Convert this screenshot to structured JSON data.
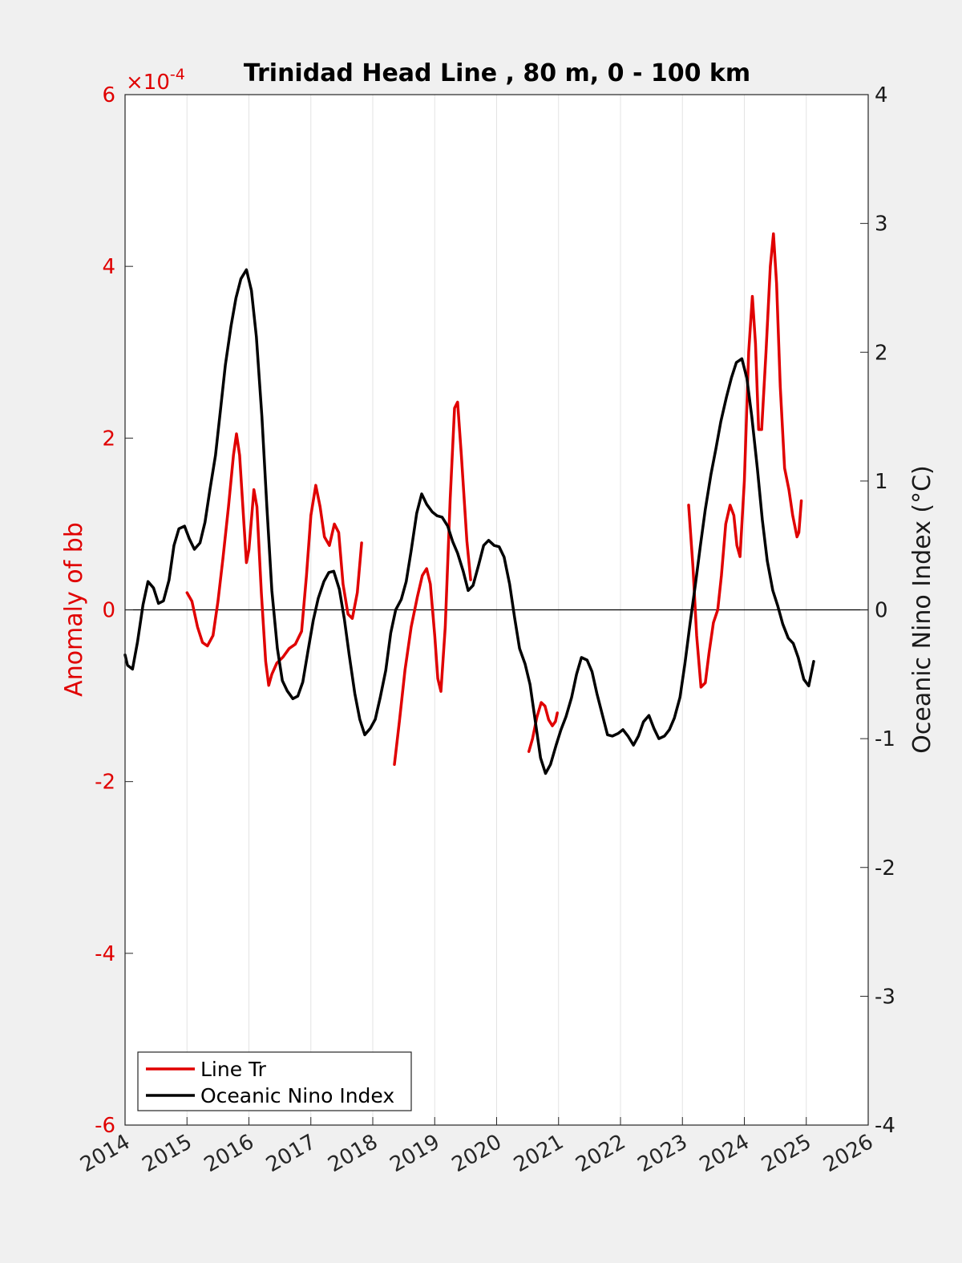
{
  "chart_data": {
    "type": "line",
    "title": "Trinidad Head Line , 80 m, 0 - 100 km",
    "xlabel": "",
    "ylabel": "Anomaly of bb",
    "ylabel_right": "Oceanic Nino Index (°C)",
    "y_exponent_label": "×10",
    "y_exponent_power": "-4",
    "xlim": [
      2014,
      2026
    ],
    "ylim": [
      -6,
      6
    ],
    "ylim_right": [
      -4,
      4
    ],
    "x_ticks": [
      2014,
      2015,
      2016,
      2017,
      2018,
      2019,
      2020,
      2021,
      2022,
      2023,
      2024,
      2025,
      2026
    ],
    "x_tick_labels": [
      "2014",
      "2015",
      "2016",
      "2017",
      "2018",
      "2019",
      "2020",
      "2021",
      "2022",
      "2023",
      "2024",
      "2025",
      "2026"
    ],
    "y_ticks": [
      -6,
      -4,
      -2,
      0,
      2,
      4,
      6
    ],
    "y_tick_labels": [
      "-6",
      "-4",
      "-2",
      "0",
      "2",
      "4",
      "6"
    ],
    "y_ticks_right": [
      -4,
      -3,
      -2,
      -1,
      0,
      1,
      2,
      3,
      4
    ],
    "y_tick_labels_right": [
      "-4",
      "-3",
      "-2",
      "-1",
      "0",
      "1",
      "2",
      "3",
      "4"
    ],
    "grid": "vertical",
    "legend_position": "bottom-left",
    "series": [
      {
        "name": "Line Tr",
        "axis": "left",
        "color": "#e00000",
        "segments": [
          [
            [
              2015.0,
              0.2
            ],
            [
              2015.08,
              0.1
            ],
            [
              2015.17,
              -0.2
            ],
            [
              2015.25,
              -0.38
            ],
            [
              2015.33,
              -0.42
            ],
            [
              2015.42,
              -0.3
            ],
            [
              2015.5,
              0.1
            ],
            [
              2015.58,
              0.6
            ],
            [
              2015.67,
              1.2
            ],
            [
              2015.75,
              1.8
            ],
            [
              2015.8,
              2.05
            ],
            [
              2015.85,
              1.8
            ],
            [
              2015.92,
              1.0
            ],
            [
              2015.96,
              0.55
            ],
            [
              2016.0,
              0.7
            ],
            [
              2016.08,
              1.4
            ],
            [
              2016.13,
              1.2
            ],
            [
              2016.2,
              0.2
            ],
            [
              2016.27,
              -0.6
            ],
            [
              2016.32,
              -0.88
            ],
            [
              2016.37,
              -0.75
            ],
            [
              2016.45,
              -0.62
            ],
            [
              2016.55,
              -0.55
            ],
            [
              2016.65,
              -0.45
            ],
            [
              2016.75,
              -0.4
            ],
            [
              2016.85,
              -0.25
            ],
            [
              2016.93,
              0.4
            ],
            [
              2017.0,
              1.1
            ],
            [
              2017.08,
              1.45
            ],
            [
              2017.15,
              1.2
            ],
            [
              2017.22,
              0.85
            ],
            [
              2017.3,
              0.75
            ],
            [
              2017.38,
              1.0
            ],
            [
              2017.45,
              0.9
            ],
            [
              2017.52,
              0.3
            ],
            [
              2017.6,
              -0.05
            ],
            [
              2017.67,
              -0.1
            ],
            [
              2017.75,
              0.2
            ],
            [
              2017.82,
              0.78
            ]
          ],
          [
            [
              2018.35,
              -1.8
            ],
            [
              2018.43,
              -1.3
            ],
            [
              2018.52,
              -0.7
            ],
            [
              2018.62,
              -0.2
            ],
            [
              2018.72,
              0.15
            ],
            [
              2018.8,
              0.4
            ],
            [
              2018.87,
              0.48
            ],
            [
              2018.93,
              0.3
            ],
            [
              2019.0,
              -0.3
            ],
            [
              2019.05,
              -0.8
            ],
            [
              2019.1,
              -0.95
            ],
            [
              2019.17,
              -0.2
            ],
            [
              2019.25,
              1.3
            ],
            [
              2019.32,
              2.35
            ],
            [
              2019.37,
              2.42
            ],
            [
              2019.43,
              1.8
            ],
            [
              2019.52,
              0.8
            ],
            [
              2019.58,
              0.35
            ]
          ],
          [
            [
              2020.52,
              -1.65
            ],
            [
              2020.58,
              -1.5
            ],
            [
              2020.65,
              -1.25
            ],
            [
              2020.72,
              -1.08
            ],
            [
              2020.78,
              -1.12
            ],
            [
              2020.84,
              -1.28
            ],
            [
              2020.9,
              -1.35
            ],
            [
              2020.95,
              -1.3
            ],
            [
              2020.98,
              -1.2
            ]
          ],
          [
            [
              2023.1,
              1.22
            ],
            [
              2023.17,
              0.5
            ],
            [
              2023.23,
              -0.3
            ],
            [
              2023.3,
              -0.9
            ],
            [
              2023.37,
              -0.85
            ],
            [
              2023.43,
              -0.5
            ],
            [
              2023.5,
              -0.15
            ],
            [
              2023.57,
              0.0
            ],
            [
              2023.63,
              0.4
            ],
            [
              2023.7,
              1.0
            ],
            [
              2023.77,
              1.22
            ],
            [
              2023.83,
              1.1
            ],
            [
              2023.88,
              0.75
            ],
            [
              2023.93,
              0.62
            ],
            [
              2024.0,
              1.5
            ],
            [
              2024.07,
              3.0
            ],
            [
              2024.13,
              3.65
            ],
            [
              2024.18,
              3.1
            ],
            [
              2024.23,
              2.1
            ],
            [
              2024.28,
              2.1
            ],
            [
              2024.35,
              3.0
            ],
            [
              2024.42,
              4.0
            ],
            [
              2024.47,
              4.38
            ],
            [
              2024.52,
              3.8
            ],
            [
              2024.58,
              2.6
            ],
            [
              2024.65,
              1.65
            ],
            [
              2024.72,
              1.4
            ],
            [
              2024.78,
              1.1
            ],
            [
              2024.85,
              0.85
            ],
            [
              2024.88,
              0.9
            ],
            [
              2024.92,
              1.27
            ]
          ]
        ]
      },
      {
        "name": "Oceanic Nino Index",
        "axis": "right",
        "color": "#000000",
        "segments": [
          [
            [
              2014.0,
              -0.35
            ],
            [
              2014.04,
              -0.43
            ],
            [
              2014.12,
              -0.46
            ],
            [
              2014.2,
              -0.25
            ],
            [
              2014.29,
              0.04
            ],
            [
              2014.37,
              0.22
            ],
            [
              2014.46,
              0.17
            ],
            [
              2014.54,
              0.05
            ],
            [
              2014.62,
              0.07
            ],
            [
              2014.71,
              0.23
            ],
            [
              2014.79,
              0.5
            ],
            [
              2014.87,
              0.63
            ],
            [
              2014.96,
              0.65
            ],
            [
              2015.04,
              0.55
            ],
            [
              2015.12,
              0.47
            ],
            [
              2015.21,
              0.52
            ],
            [
              2015.29,
              0.68
            ],
            [
              2015.37,
              0.93
            ],
            [
              2015.46,
              1.2
            ],
            [
              2015.54,
              1.55
            ],
            [
              2015.62,
              1.9
            ],
            [
              2015.71,
              2.2
            ],
            [
              2015.79,
              2.42
            ],
            [
              2015.87,
              2.57
            ],
            [
              2015.96,
              2.64
            ],
            [
              2016.04,
              2.48
            ],
            [
              2016.12,
              2.12
            ],
            [
              2016.21,
              1.5
            ],
            [
              2016.29,
              0.8
            ],
            [
              2016.37,
              0.15
            ],
            [
              2016.46,
              -0.3
            ],
            [
              2016.54,
              -0.55
            ],
            [
              2016.62,
              -0.63
            ],
            [
              2016.71,
              -0.69
            ],
            [
              2016.79,
              -0.67
            ],
            [
              2016.87,
              -0.56
            ],
            [
              2016.96,
              -0.3
            ],
            [
              2017.04,
              -0.08
            ],
            [
              2017.12,
              0.09
            ],
            [
              2017.21,
              0.22
            ],
            [
              2017.29,
              0.29
            ],
            [
              2017.37,
              0.3
            ],
            [
              2017.46,
              0.16
            ],
            [
              2017.54,
              -0.07
            ],
            [
              2017.62,
              -0.35
            ],
            [
              2017.71,
              -0.65
            ],
            [
              2017.79,
              -0.85
            ],
            [
              2017.87,
              -0.97
            ],
            [
              2017.96,
              -0.92
            ],
            [
              2018.04,
              -0.85
            ],
            [
              2018.12,
              -0.68
            ],
            [
              2018.21,
              -0.47
            ],
            [
              2018.29,
              -0.18
            ],
            [
              2018.37,
              0.0
            ],
            [
              2018.46,
              0.08
            ],
            [
              2018.54,
              0.22
            ],
            [
              2018.62,
              0.46
            ],
            [
              2018.71,
              0.75
            ],
            [
              2018.79,
              0.9
            ],
            [
              2018.87,
              0.82
            ],
            [
              2018.96,
              0.76
            ],
            [
              2019.04,
              0.73
            ],
            [
              2019.12,
              0.72
            ],
            [
              2019.21,
              0.65
            ],
            [
              2019.29,
              0.53
            ],
            [
              2019.37,
              0.44
            ],
            [
              2019.46,
              0.3
            ],
            [
              2019.54,
              0.15
            ],
            [
              2019.62,
              0.19
            ],
            [
              2019.71,
              0.35
            ],
            [
              2019.79,
              0.5
            ],
            [
              2019.87,
              0.54
            ],
            [
              2019.96,
              0.5
            ],
            [
              2020.04,
              0.49
            ],
            [
              2020.12,
              0.41
            ],
            [
              2020.21,
              0.2
            ],
            [
              2020.29,
              -0.06
            ],
            [
              2020.37,
              -0.3
            ],
            [
              2020.46,
              -0.42
            ],
            [
              2020.54,
              -0.58
            ],
            [
              2020.62,
              -0.85
            ],
            [
              2020.71,
              -1.15
            ],
            [
              2020.79,
              -1.27
            ],
            [
              2020.87,
              -1.2
            ],
            [
              2020.96,
              -1.05
            ],
            [
              2021.04,
              -0.93
            ],
            [
              2021.12,
              -0.83
            ],
            [
              2021.21,
              -0.68
            ],
            [
              2021.29,
              -0.5
            ],
            [
              2021.37,
              -0.37
            ],
            [
              2021.46,
              -0.39
            ],
            [
              2021.54,
              -0.48
            ],
            [
              2021.62,
              -0.65
            ],
            [
              2021.71,
              -0.82
            ],
            [
              2021.79,
              -0.97
            ],
            [
              2021.87,
              -0.98
            ],
            [
              2021.96,
              -0.96
            ],
            [
              2022.04,
              -0.93
            ],
            [
              2022.12,
              -0.98
            ],
            [
              2022.21,
              -1.05
            ],
            [
              2022.29,
              -0.98
            ],
            [
              2022.37,
              -0.87
            ],
            [
              2022.46,
              -0.82
            ],
            [
              2022.54,
              -0.92
            ],
            [
              2022.62,
              -1.0
            ],
            [
              2022.71,
              -0.98
            ],
            [
              2022.79,
              -0.93
            ],
            [
              2022.87,
              -0.84
            ],
            [
              2022.96,
              -0.68
            ],
            [
              2023.04,
              -0.42
            ],
            [
              2023.12,
              -0.12
            ],
            [
              2023.21,
              0.2
            ],
            [
              2023.29,
              0.5
            ],
            [
              2023.37,
              0.78
            ],
            [
              2023.46,
              1.05
            ],
            [
              2023.54,
              1.25
            ],
            [
              2023.62,
              1.46
            ],
            [
              2023.71,
              1.65
            ],
            [
              2023.79,
              1.8
            ],
            [
              2023.87,
              1.92
            ],
            [
              2023.96,
              1.95
            ],
            [
              2024.04,
              1.8
            ],
            [
              2024.12,
              1.5
            ],
            [
              2024.21,
              1.1
            ],
            [
              2024.29,
              0.7
            ],
            [
              2024.37,
              0.38
            ],
            [
              2024.46,
              0.15
            ],
            [
              2024.54,
              0.03
            ],
            [
              2024.62,
              -0.11
            ],
            [
              2024.71,
              -0.22
            ],
            [
              2024.79,
              -0.26
            ],
            [
              2024.87,
              -0.37
            ],
            [
              2024.96,
              -0.54
            ],
            [
              2025.04,
              -0.59
            ],
            [
              2025.12,
              -0.4
            ]
          ]
        ]
      }
    ]
  }
}
